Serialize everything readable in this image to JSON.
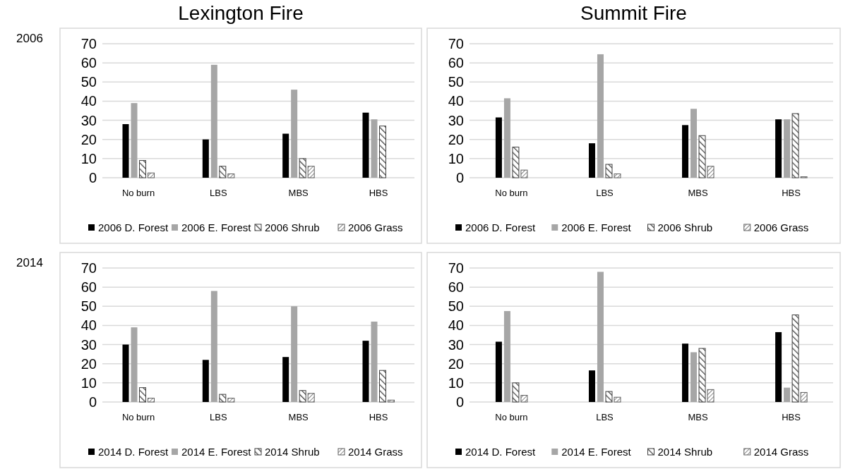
{
  "chart_data": [
    {
      "type": "bar",
      "title": "Lexington Fire",
      "annotations": [
        "2006"
      ],
      "categories": [
        "No burn",
        "LBS",
        "MBS",
        "HBS"
      ],
      "ylim": [
        0,
        70
      ],
      "yticks": [
        0,
        10,
        20,
        30,
        40,
        50,
        60,
        70
      ],
      "grid": "y",
      "legend": "bottom",
      "series": [
        {
          "name": "2006 D. Forest",
          "color": "#000000",
          "values": [
            28,
            20,
            23,
            34
          ]
        },
        {
          "name": "2006 E. Forest",
          "color": "#a6a6a6",
          "values": [
            39,
            59,
            46,
            30.5
          ]
        },
        {
          "name": "2006 Shrub",
          "color": "#404040",
          "values": [
            9,
            6,
            10,
            27
          ]
        },
        {
          "name": "2006 Grass",
          "color": "#606060",
          "values": [
            2.5,
            2,
            6,
            null
          ]
        }
      ]
    },
    {
      "type": "bar",
      "title": "Summit Fire",
      "categories": [
        "No burn",
        "LBS",
        "MBS",
        "HBS"
      ],
      "ylim": [
        0,
        70
      ],
      "yticks": [
        0,
        10,
        20,
        30,
        40,
        50,
        60,
        70
      ],
      "grid": "y",
      "legend": "bottom",
      "series": [
        {
          "name": "2006 D. Forest",
          "color": "#000000",
          "values": [
            31.5,
            18,
            27.5,
            30.5
          ]
        },
        {
          "name": "2006 E. Forest",
          "color": "#a6a6a6",
          "values": [
            41.5,
            64.5,
            36,
            30.5
          ]
        },
        {
          "name": "2006 Shrub",
          "color": "#404040",
          "values": [
            16,
            7,
            22,
            33.5
          ]
        },
        {
          "name": "2006 Grass",
          "color": "#606060",
          "values": [
            4,
            2,
            6,
            0.5
          ]
        }
      ]
    },
    {
      "type": "bar",
      "annotations": [
        "2014"
      ],
      "categories": [
        "No burn",
        "LBS",
        "MBS",
        "HBS"
      ],
      "ylim": [
        0,
        70
      ],
      "yticks": [
        0,
        10,
        20,
        30,
        40,
        50,
        60,
        70
      ],
      "grid": "y",
      "legend": "bottom",
      "series": [
        {
          "name": "2014 D. Forest",
          "color": "#000000",
          "values": [
            30,
            22,
            23.5,
            32
          ]
        },
        {
          "name": "2014 E. Forest",
          "color": "#a6a6a6",
          "values": [
            39,
            58,
            50,
            42
          ]
        },
        {
          "name": "2014 Shrub",
          "color": "#404040",
          "values": [
            7.5,
            4,
            6,
            16.5
          ]
        },
        {
          "name": "2014 Grass",
          "color": "#606060",
          "values": [
            2,
            2,
            4.5,
            1
          ]
        }
      ]
    },
    {
      "type": "bar",
      "categories": [
        "No burn",
        "LBS",
        "MBS",
        "HBS"
      ],
      "ylim": [
        0,
        70
      ],
      "yticks": [
        0,
        10,
        20,
        30,
        40,
        50,
        60,
        70
      ],
      "grid": "y",
      "legend": "bottom",
      "series": [
        {
          "name": "2014 D. Forest",
          "color": "#000000",
          "values": [
            31.5,
            16.5,
            30.5,
            36.5
          ]
        },
        {
          "name": "2014 E. Forest",
          "color": "#a6a6a6",
          "values": [
            47.5,
            68,
            26,
            7.5
          ]
        },
        {
          "name": "2014 Shrub",
          "color": "#404040",
          "values": [
            10,
            5.5,
            28,
            45.5
          ]
        },
        {
          "name": "2014 Grass",
          "color": "#606060",
          "values": [
            3.5,
            2.5,
            6.5,
            5
          ]
        }
      ]
    }
  ]
}
